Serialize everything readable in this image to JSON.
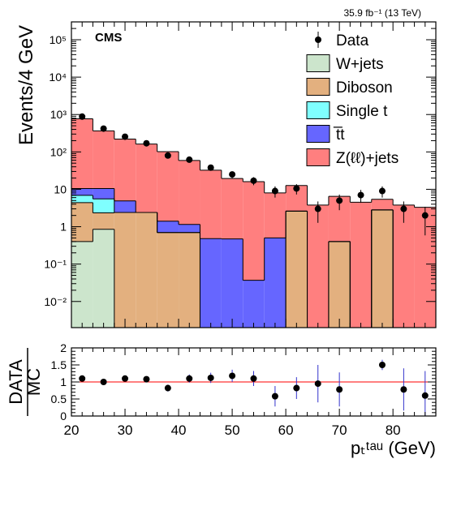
{
  "lumi_label": "35.9 fb⁻¹ (13 TeV)",
  "experiment": "CMS",
  "main_ylabel": "Events/4 GeV",
  "ratio_ylabel_top": "DATA",
  "ratio_ylabel_bottom": "MC",
  "xlabel": "pₜᵗᵃᵘ (GeV)",
  "colors": {
    "wjets": "#cce5cc",
    "diboson": "#e3b07f",
    "singlet": "#7fffff",
    "ttbar": "#6666ff",
    "zll": "#ff7f7f",
    "ratio_line": "#ff0000",
    "error_bar": "#3333cc"
  },
  "chart_data": [
    {
      "type": "bar",
      "subtype": "stacked-histogram",
      "x_edges": [
        20,
        24,
        28,
        32,
        36,
        40,
        44,
        48,
        52,
        56,
        60,
        64,
        68,
        72,
        76,
        80,
        84,
        88
      ],
      "xlim": [
        20,
        88
      ],
      "ylim": [
        0.002,
        300000
      ],
      "yscale": "log",
      "ytick_labels": [
        "10⁻²",
        "10⁻¹",
        "1",
        "10",
        "10²",
        "10³",
        "10⁴",
        "10⁵"
      ],
      "ytick_values": [
        0.01,
        0.1,
        1,
        10,
        100,
        1000,
        10000,
        100000
      ],
      "legend_position": "top-right",
      "stack": [
        {
          "name": "W+jets",
          "color_key": "wjets",
          "values": [
            0.4,
            0.85,
            0,
            0,
            0,
            0,
            0,
            0,
            0,
            0,
            0,
            0,
            0,
            0,
            0,
            0,
            0
          ]
        },
        {
          "name": "Diboson",
          "color_key": "diboson",
          "values": [
            4.0,
            1.5,
            2.4,
            2.4,
            0.7,
            0.7,
            0,
            0,
            0,
            0,
            2.6,
            0,
            0.4,
            0,
            2.8,
            0,
            0
          ]
        },
        {
          "name": "Single t",
          "color_key": "singlet",
          "values": [
            2.5,
            3.2,
            0,
            0,
            0,
            0,
            0,
            0,
            0,
            0,
            0,
            0,
            0,
            0,
            0,
            0,
            0
          ]
        },
        {
          "name": "t̅t",
          "color_key": "ttbar",
          "values": [
            3.6,
            4.9,
            2.5,
            0,
            0.7,
            0.45,
            0.48,
            0.47,
            0.037,
            0.5,
            0,
            0,
            0,
            0,
            0,
            0,
            0
          ]
        },
        {
          "name": "Z(ℓℓ)+jets",
          "color_key": "zll",
          "values": [
            760,
            355,
            215,
            160,
            100,
            58,
            32,
            19,
            16,
            7.5,
            10,
            3.8,
            6.1,
            4.5,
            2.6,
            3.8,
            3.3
          ]
        }
      ],
      "data": {
        "name": "Data",
        "x": [
          22,
          26,
          30,
          34,
          38,
          42,
          46,
          50,
          54,
          58,
          62,
          66,
          70,
          74,
          78,
          82,
          86
        ],
        "y": [
          880,
          420,
          255,
          170,
          80,
          62,
          38,
          25,
          17,
          9,
          10.5,
          3,
          5,
          7,
          9,
          3,
          2
        ]
      }
    },
    {
      "type": "scatter",
      "subtype": "ratio",
      "xlim": [
        20,
        88
      ],
      "ylim": [
        0,
        2
      ],
      "ytick_labels": [
        "0",
        "0.5",
        "1",
        "1.5",
        "2"
      ],
      "ytick_values": [
        0,
        0.5,
        1,
        1.5,
        2
      ],
      "xtick_values": [
        20,
        30,
        40,
        50,
        60,
        70,
        80
      ],
      "xtick_labels": [
        "20",
        "30",
        "40",
        "50",
        "60",
        "70",
        "80"
      ],
      "reference_line": 1,
      "x": [
        22,
        26,
        30,
        34,
        38,
        42,
        46,
        50,
        54,
        58,
        62,
        66,
        70,
        74,
        78,
        82,
        86
      ],
      "y": [
        1.1,
        1.0,
        1.1,
        1.08,
        0.82,
        1.1,
        1.12,
        1.18,
        1.1,
        0.58,
        0.82,
        0.95,
        0.78,
        null,
        1.5,
        0.78,
        0.6
      ],
      "err": [
        0.05,
        0.06,
        0.07,
        0.08,
        0.1,
        0.12,
        0.15,
        0.18,
        0.22,
        0.3,
        0.32,
        0.55,
        0.5,
        null,
        0.15,
        0.62,
        0.72
      ]
    }
  ]
}
